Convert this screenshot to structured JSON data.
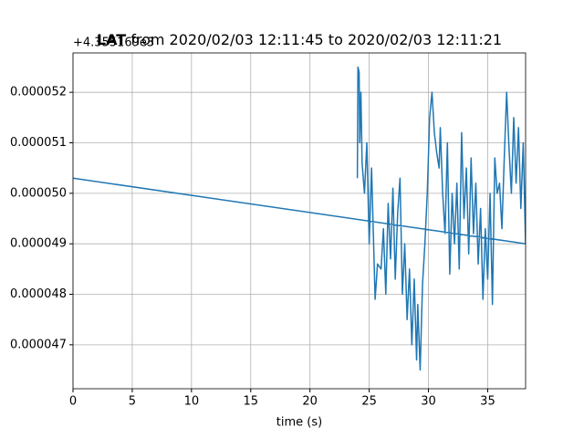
{
  "chart_data": {
    "type": "line",
    "title_bold": "LAT",
    "title": "from 2020/02/03 12:11:45 to 2020/02/03 12:11:21",
    "offset_text": "+4.355169e3",
    "xlabel": "time (s)",
    "xlim": [
      0,
      38.2
    ],
    "xticks": [
      0,
      5,
      10,
      15,
      20,
      25,
      30,
      35
    ],
    "ylim": [
      4.613e-05,
      5.278e-05
    ],
    "yticks": [
      4.7e-05,
      4.8e-05,
      4.9e-05,
      {
        "value": 5e-05,
        "label": "0.000050"
      },
      5.1e-05,
      5.2e-05
    ],
    "grid": true,
    "series": [
      {
        "color": "#1f77b4",
        "x": [
          24.0,
          24.05,
          24.15,
          24.2,
          24.3,
          24.4,
          24.6,
          24.8,
          25.0,
          25.2,
          25.5,
          25.7,
          26.0,
          26.2,
          26.4,
          26.6,
          26.8,
          27.0,
          27.2,
          27.4,
          27.6,
          27.8,
          28.0,
          28.2,
          28.4,
          28.6,
          28.8,
          29.0,
          29.1,
          29.3,
          29.5,
          29.7,
          29.9,
          30.1,
          30.3,
          30.5,
          30.7,
          30.9,
          31.0,
          31.2,
          31.4,
          31.6,
          31.8,
          32.0,
          32.2,
          32.4,
          32.6,
          32.8,
          33.0,
          33.2,
          33.4,
          33.6,
          33.8,
          34.0,
          34.2,
          34.4,
          34.6,
          34.8,
          35.0,
          35.2,
          35.4,
          35.6,
          35.8,
          36.0,
          36.2,
          36.4,
          36.6,
          36.8,
          37.0,
          37.2,
          37.4,
          37.6,
          37.8,
          38.0,
          38.2,
          0
        ],
        "values": [
          5.03e-05,
          5.25e-05,
          5.24e-05,
          5.1e-05,
          5.2e-05,
          5.06e-05,
          5e-05,
          5.1e-05,
          4.9e-05,
          5.05e-05,
          4.79e-05,
          4.86e-05,
          4.85e-05,
          4.93e-05,
          4.8e-05,
          4.98e-05,
          4.87e-05,
          5.01e-05,
          4.83e-05,
          4.96e-05,
          5.03e-05,
          4.8e-05,
          4.9e-05,
          4.75e-05,
          4.85e-05,
          4.7e-05,
          4.83e-05,
          4.67e-05,
          4.78e-05,
          4.65e-05,
          4.82e-05,
          4.9e-05,
          5e-05,
          5.15e-05,
          5.2e-05,
          5.12e-05,
          5.08e-05,
          5.05e-05,
          5.13e-05,
          5e-05,
          4.92e-05,
          5.1e-05,
          4.84e-05,
          5e-05,
          4.9e-05,
          5.02e-05,
          4.85e-05,
          5.12e-05,
          4.95e-05,
          5.05e-05,
          4.88e-05,
          5.07e-05,
          4.92e-05,
          5.02e-05,
          4.86e-05,
          4.97e-05,
          4.79e-05,
          4.93e-05,
          4.83e-05,
          5e-05,
          4.78e-05,
          5.07e-05,
          5e-05,
          5.02e-05,
          4.93e-05,
          5.07e-05,
          5.2e-05,
          5.09e-05,
          5e-05,
          5.15e-05,
          5.02e-05,
          5.13e-05,
          4.97e-05,
          5.1e-05,
          4.9e-05,
          5.03e-05
        ]
      }
    ]
  }
}
